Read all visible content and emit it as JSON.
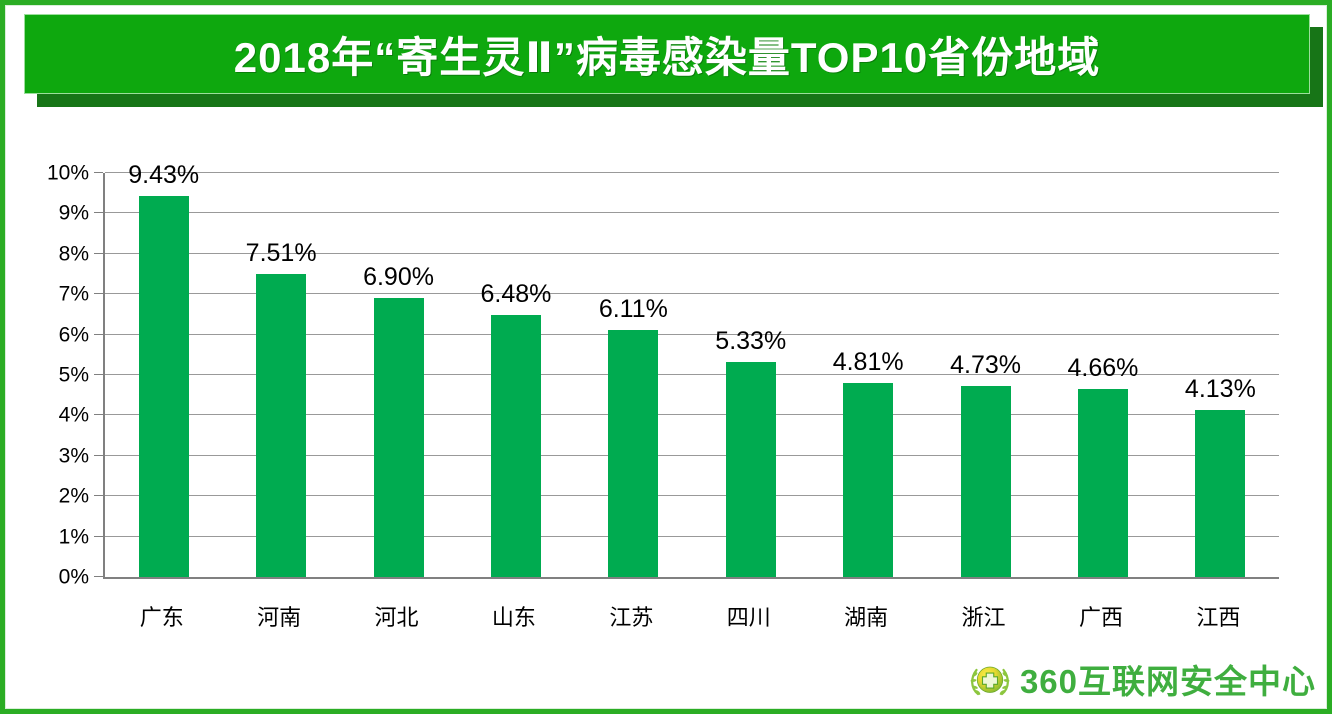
{
  "header": {
    "title": "2018年“寄生灵Ⅱ”病毒感染量TOP10省份地域"
  },
  "chart_data": {
    "type": "bar",
    "title": "2018年“寄生灵Ⅱ”病毒感染量TOP10省份地域",
    "categories": [
      "广东",
      "河南",
      "河北",
      "山东",
      "江苏",
      "四川",
      "湖南",
      "浙江",
      "广西",
      "江西"
    ],
    "values": [
      9.43,
      7.51,
      6.9,
      6.48,
      6.11,
      5.33,
      4.81,
      4.73,
      4.66,
      4.13
    ],
    "value_labels": [
      "9.43%",
      "7.51%",
      "6.90%",
      "6.48%",
      "6.11%",
      "5.33%",
      "4.81%",
      "4.73%",
      "4.66%",
      "4.13%"
    ],
    "xlabel": "",
    "ylabel": "",
    "ylim": [
      0,
      10
    ],
    "y_ticks": [
      "0%",
      "1%",
      "2%",
      "3%",
      "4%",
      "5%",
      "6%",
      "7%",
      "8%",
      "9%",
      "10%"
    ],
    "grid": true,
    "legend": "none",
    "bar_color": "#00ab50"
  },
  "footer": {
    "logo_text": "360互联网安全中心"
  },
  "colors": {
    "banner_green": "#0ea80e",
    "banner_shadow": "#177517",
    "frame_green": "#2bad24",
    "bar_green": "#00ab50",
    "grid_gray": "#999999",
    "logo_green": "#3fae3f"
  }
}
